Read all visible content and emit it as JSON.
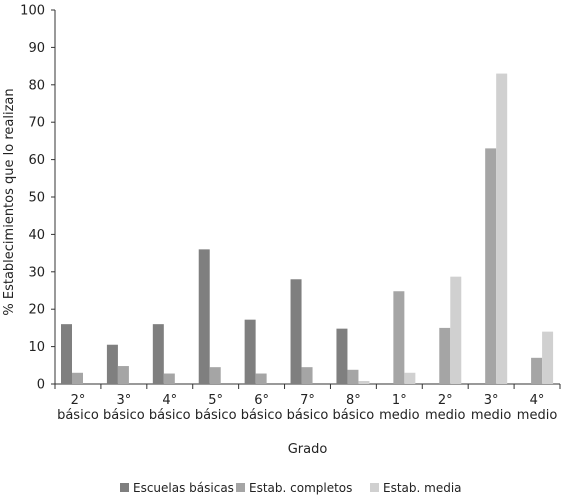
{
  "chart_data": {
    "type": "bar",
    "categories": [
      [
        "2°",
        "básico"
      ],
      [
        "3°",
        "básico"
      ],
      [
        "4°",
        "básico"
      ],
      [
        "5°",
        "básico"
      ],
      [
        "6°",
        "básico"
      ],
      [
        "7°",
        "básico"
      ],
      [
        "8°",
        "básico"
      ],
      [
        "1°",
        "medio"
      ],
      [
        "2°",
        "medio"
      ],
      [
        "3°",
        "medio"
      ],
      [
        "4°",
        "medio"
      ]
    ],
    "series": [
      {
        "name": "Escuelas básicas",
        "color": "#7f7f7f",
        "values": [
          16,
          10.5,
          16,
          36,
          17.2,
          28,
          14.8,
          null,
          null,
          null,
          null
        ]
      },
      {
        "name": "Estab. completos",
        "color": "#a5a5a5",
        "values": [
          3,
          4.8,
          2.8,
          4.5,
          2.8,
          4.5,
          3.8,
          24.8,
          15,
          63,
          7
        ]
      },
      {
        "name": "Estab. media",
        "color": "#d0d0d0",
        "values": [
          null,
          null,
          null,
          null,
          null,
          null,
          0.8,
          3,
          28.7,
          83,
          14
        ]
      }
    ],
    "ylim": [
      0,
      100
    ],
    "yticks": [
      0,
      10,
      20,
      30,
      40,
      50,
      60,
      70,
      80,
      90,
      100
    ],
    "ylabel": "% Establecimientos que lo realizan",
    "xlabel": "Grado",
    "legend_position": "bottom",
    "grid": false
  }
}
